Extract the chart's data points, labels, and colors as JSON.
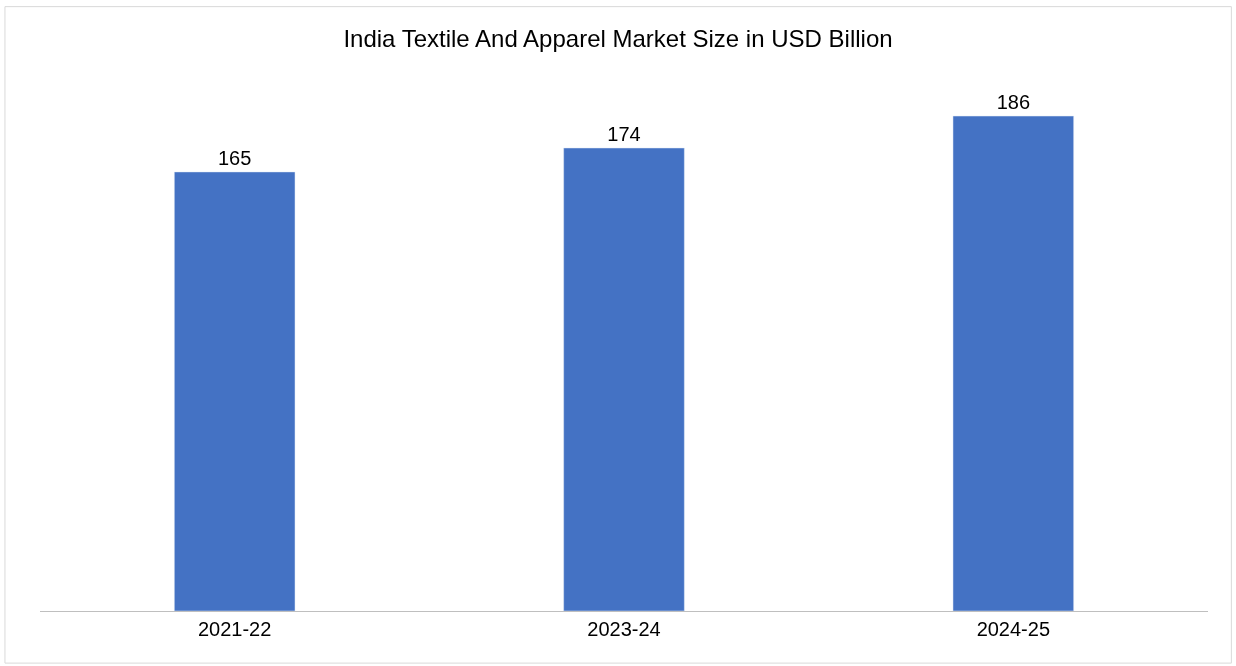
{
  "chart_data": {
    "type": "bar",
    "title": "India Textile And Apparel Market Size in USD Billion",
    "categories": [
      "2021-22",
      "2023-24",
      "2024-25"
    ],
    "values": [
      165,
      174,
      186
    ],
    "color": "#4472c4",
    "data_labels": true,
    "tick_labels": "x",
    "legend": false
  }
}
